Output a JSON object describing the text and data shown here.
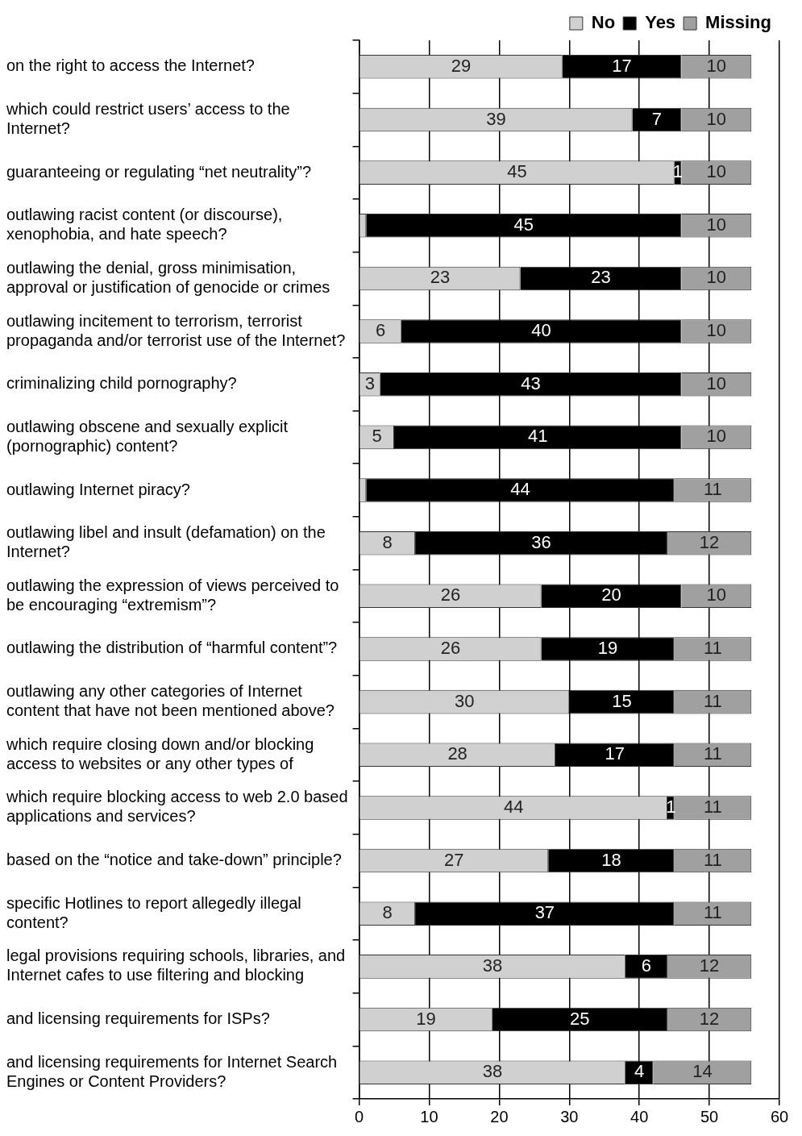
{
  "chart_data": {
    "type": "bar",
    "orientation": "horizontal",
    "stacked": true,
    "categories": [
      "on the right to access the Internet?",
      "which could restrict users’ access to the\nInternet?",
      "guaranteeing or regulating “net neutrality”?",
      "outlawing racist content (or discourse),\nxenophobia, and hate speech?",
      "outlawing the denial, gross minimisation,\napproval or justification of genocide or crimes",
      "outlawing incitement to terrorism, terrorist\npropaganda and/or terrorist use of the Internet?",
      "criminalizing child pornography?",
      "outlawing obscene and sexually explicit\n(pornographic) content?",
      "outlawing Internet piracy?",
      "outlawing libel and insult (defamation) on the\nInternet?",
      "outlawing the expression of views perceived to\nbe encouraging “extremism”?",
      "outlawing the distribution of “harmful content”?",
      "outlawing any other categories of Internet\ncontent that have not been mentioned above?",
      "which require closing down and/or blocking\naccess to websites or any other types of",
      "which require blocking access to web 2.0 based\napplications and services?",
      "based on the “notice and take-down” principle?",
      "specific Hotlines to report allegedly illegal\ncontent?",
      "legal provisions requiring schools, libraries, and\nInternet cafes to use filtering and blocking",
      "and licensing requirements for ISPs?",
      "and licensing requirements for Internet Search\nEngines or Content Providers?"
    ],
    "series": [
      {
        "name": "No",
        "color": "#d0d0d0",
        "values": [
          29,
          39,
          45,
          1,
          23,
          6,
          3,
          5,
          1,
          8,
          26,
          26,
          30,
          28,
          44,
          27,
          8,
          38,
          19,
          38
        ],
        "value_labels": [
          "29",
          "39",
          "45",
          null,
          "23",
          "6",
          "3",
          "5",
          null,
          "8",
          "26",
          "26",
          "30",
          "28",
          "44",
          "27",
          "8",
          "38",
          "19",
          "38"
        ]
      },
      {
        "name": "Yes",
        "color": "#000000",
        "values": [
          17,
          7,
          1,
          45,
          23,
          40,
          43,
          41,
          44,
          36,
          20,
          19,
          15,
          17,
          1,
          18,
          37,
          6,
          25,
          4
        ],
        "value_labels": [
          "17",
          "7",
          "1",
          "45",
          "23",
          "40",
          "43",
          "41",
          "44",
          "36",
          "20",
          "19",
          "15",
          "17",
          "1",
          "18",
          "37",
          "6",
          "25",
          "4"
        ]
      },
      {
        "name": "Missing",
        "color": "#a0a0a0",
        "values": [
          10,
          10,
          10,
          10,
          10,
          10,
          10,
          10,
          11,
          12,
          10,
          11,
          11,
          11,
          11,
          11,
          11,
          12,
          12,
          14
        ],
        "value_labels": [
          "10",
          "10",
          "10",
          "10",
          "10",
          "10",
          "10",
          "10",
          "11",
          "12",
          "10",
          "11",
          "11",
          "11",
          "11",
          "11",
          "11",
          "12",
          "12",
          "14"
        ]
      }
    ],
    "xlim": [
      0,
      60
    ],
    "xticks": [
      0,
      10,
      20,
      30,
      40,
      50,
      60
    ],
    "grid": "x",
    "legend": "top right"
  }
}
